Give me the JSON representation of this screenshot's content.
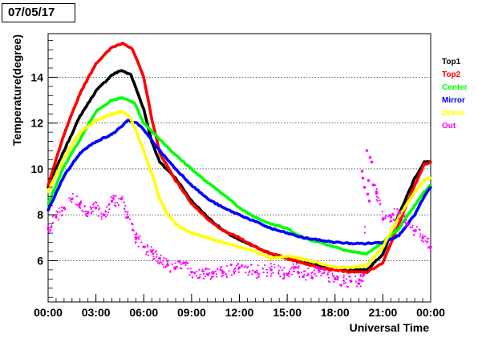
{
  "chart_data": {
    "type": "scatter",
    "title": "07/05/17",
    "xlabel": "Universal Time",
    "ylabel": "Temperature(degree)",
    "xlim": [
      0,
      24
    ],
    "ylim": [
      4.2,
      15.9
    ],
    "x_ticks": [
      0,
      3,
      6,
      9,
      12,
      15,
      18,
      21,
      24
    ],
    "x_tick_labels": [
      "00:00",
      "03:00",
      "06:00",
      "09:00",
      "12:00",
      "15:00",
      "18:00",
      "21:00",
      "00:00"
    ],
    "y_ticks": [
      6,
      8,
      10,
      12,
      14
    ],
    "y_tick_labels": [
      "6",
      "8",
      "10",
      "12",
      "14"
    ],
    "grid": "horizontal dotted",
    "legend_position": "right",
    "series": [
      {
        "name": "Top1",
        "color": "#000000",
        "points": [
          [
            0,
            9.2
          ],
          [
            1,
            10.8
          ],
          [
            2,
            12.3
          ],
          [
            3,
            13.4
          ],
          [
            4,
            14.1
          ],
          [
            4.6,
            14.3
          ],
          [
            5.2,
            14.1
          ],
          [
            6,
            12.6
          ],
          [
            6.5,
            11.2
          ],
          [
            7,
            10.3
          ],
          [
            8,
            9.6
          ],
          [
            9,
            8.6
          ],
          [
            10,
            7.9
          ],
          [
            11,
            7.3
          ],
          [
            12,
            6.9
          ],
          [
            13,
            6.6
          ],
          [
            14,
            6.3
          ],
          [
            15,
            6.1
          ],
          [
            16,
            5.9
          ],
          [
            17,
            5.8
          ],
          [
            18,
            5.7
          ],
          [
            19,
            5.6
          ],
          [
            20,
            5.6
          ],
          [
            21,
            6.3
          ],
          [
            22,
            8.0
          ],
          [
            23,
            9.6
          ],
          [
            23.6,
            10.3
          ],
          [
            24,
            10.3
          ]
        ]
      },
      {
        "name": "Top2",
        "color": "#ff0000",
        "points": [
          [
            0,
            9.3
          ],
          [
            1,
            11.5
          ],
          [
            2,
            13.3
          ],
          [
            3,
            14.6
          ],
          [
            4,
            15.3
          ],
          [
            4.7,
            15.5
          ],
          [
            5.3,
            15.2
          ],
          [
            6,
            14.0
          ],
          [
            6.5,
            12.2
          ],
          [
            7,
            10.7
          ],
          [
            8,
            9.5
          ],
          [
            9,
            8.5
          ],
          [
            10,
            7.8
          ],
          [
            11,
            7.3
          ],
          [
            12,
            7.0
          ],
          [
            13,
            6.6
          ],
          [
            14,
            6.3
          ],
          [
            15,
            6.1
          ],
          [
            16,
            5.9
          ],
          [
            17,
            5.7
          ],
          [
            18,
            5.6
          ],
          [
            19,
            5.5
          ],
          [
            20,
            5.5
          ],
          [
            21,
            5.9
          ],
          [
            22,
            7.6
          ],
          [
            23,
            9.3
          ],
          [
            23.6,
            10.2
          ],
          [
            24,
            10.3
          ]
        ]
      },
      {
        "name": "Center",
        "color": "#00ff00",
        "points": [
          [
            0,
            8.5
          ],
          [
            1,
            10.1
          ],
          [
            2,
            11.3
          ],
          [
            3,
            12.5
          ],
          [
            4,
            13.0
          ],
          [
            4.7,
            13.1
          ],
          [
            5.4,
            12.9
          ],
          [
            6,
            12.0
          ],
          [
            7,
            11.3
          ],
          [
            8,
            10.6
          ],
          [
            9,
            10.0
          ],
          [
            10,
            9.4
          ],
          [
            11,
            8.9
          ],
          [
            12,
            8.3
          ],
          [
            13,
            7.9
          ],
          [
            14,
            7.6
          ],
          [
            15,
            7.4
          ],
          [
            16,
            7.0
          ],
          [
            17,
            6.8
          ],
          [
            18,
            6.6
          ],
          [
            19,
            6.4
          ],
          [
            20,
            6.3
          ],
          [
            21,
            6.8
          ],
          [
            22,
            7.4
          ],
          [
            23,
            8.4
          ],
          [
            23.6,
            9.0
          ],
          [
            24,
            9.3
          ]
        ]
      },
      {
        "name": "Mirror",
        "color": "#0000ff",
        "points": [
          [
            0,
            8.2
          ],
          [
            1,
            9.7
          ],
          [
            2,
            10.7
          ],
          [
            3,
            11.2
          ],
          [
            4,
            11.5
          ],
          [
            5,
            12.1
          ],
          [
            5.6,
            12.0
          ],
          [
            6,
            11.7
          ],
          [
            7,
            10.8
          ],
          [
            8,
            10.0
          ],
          [
            9,
            9.3
          ],
          [
            10,
            8.7
          ],
          [
            11,
            8.3
          ],
          [
            12,
            8.0
          ],
          [
            13,
            7.7
          ],
          [
            14,
            7.4
          ],
          [
            15,
            7.2
          ],
          [
            16,
            7.0
          ],
          [
            17,
            6.9
          ],
          [
            18,
            6.8
          ],
          [
            19,
            6.75
          ],
          [
            20,
            6.75
          ],
          [
            21,
            6.8
          ],
          [
            22,
            7.1
          ],
          [
            23,
            8.0
          ],
          [
            23.6,
            8.8
          ],
          [
            24,
            9.2
          ]
        ]
      },
      {
        "name": "Dome",
        "color": "#ffff00",
        "points": [
          [
            0,
            9.0
          ],
          [
            1,
            10.5
          ],
          [
            2,
            11.6
          ],
          [
            3,
            12.1
          ],
          [
            4,
            12.4
          ],
          [
            4.7,
            12.5
          ],
          [
            5.2,
            12.2
          ],
          [
            6,
            10.8
          ],
          [
            6.5,
            9.8
          ],
          [
            7,
            8.7
          ],
          [
            7.5,
            8.0
          ],
          [
            8,
            7.6
          ],
          [
            9,
            7.2
          ],
          [
            10,
            7.0
          ],
          [
            11,
            6.8
          ],
          [
            12,
            6.6
          ],
          [
            13,
            6.4
          ],
          [
            14,
            6.1
          ],
          [
            15,
            6.2
          ],
          [
            16,
            6.1
          ],
          [
            17,
            5.9
          ],
          [
            18,
            5.7
          ],
          [
            19,
            5.7
          ],
          [
            20,
            5.8
          ],
          [
            21,
            6.6
          ],
          [
            22,
            7.9
          ],
          [
            23,
            9.0
          ],
          [
            23.6,
            9.5
          ],
          [
            24,
            9.6
          ]
        ]
      },
      {
        "name": "Out",
        "color": "#ff00ff",
        "points": [
          [
            0,
            7.4
          ],
          [
            0.5,
            7.9
          ],
          [
            1,
            8.3
          ],
          [
            1.5,
            8.7
          ],
          [
            2,
            8.5
          ],
          [
            2.5,
            8.1
          ],
          [
            3,
            8.3
          ],
          [
            3.5,
            8.0
          ],
          [
            4,
            8.6
          ],
          [
            4.6,
            8.7
          ],
          [
            5,
            7.9
          ],
          [
            5.5,
            7.0
          ],
          [
            6,
            6.6
          ],
          [
            6.5,
            6.4
          ],
          [
            7,
            6.1
          ],
          [
            7.5,
            5.8
          ],
          [
            8,
            5.7
          ],
          [
            8.5,
            5.9
          ],
          [
            9,
            5.5
          ],
          [
            10,
            5.4
          ],
          [
            11,
            5.5
          ],
          [
            12,
            5.7
          ],
          [
            13,
            5.5
          ],
          [
            14,
            5.6
          ],
          [
            15,
            5.4
          ],
          [
            15.5,
            5.7
          ],
          [
            16,
            5.3
          ],
          [
            17,
            5.6
          ],
          [
            18,
            5.2
          ],
          [
            19,
            5.1
          ],
          [
            19.5,
            5.0
          ],
          [
            19.8,
            5.4
          ],
          [
            20,
            10.8
          ],
          [
            20.3,
            10.3
          ],
          [
            20.6,
            9.0
          ],
          [
            21,
            7.8
          ],
          [
            21.5,
            7.9
          ],
          [
            22,
            8.1
          ],
          [
            22.5,
            7.6
          ],
          [
            23,
            7.3
          ],
          [
            23.5,
            7.0
          ],
          [
            24,
            6.6
          ]
        ]
      }
    ],
    "annotations": [
      {
        "series": "Out",
        "points": [
          [
            19.7,
            9.9
          ],
          [
            19.75,
            9.6
          ],
          [
            19.85,
            9.2
          ],
          [
            20.05,
            8.9
          ],
          [
            20.1,
            9.5
          ],
          [
            20.15,
            8.6
          ],
          [
            20.2,
            10.5
          ],
          [
            20.4,
            9.3
          ]
        ]
      }
    ]
  }
}
